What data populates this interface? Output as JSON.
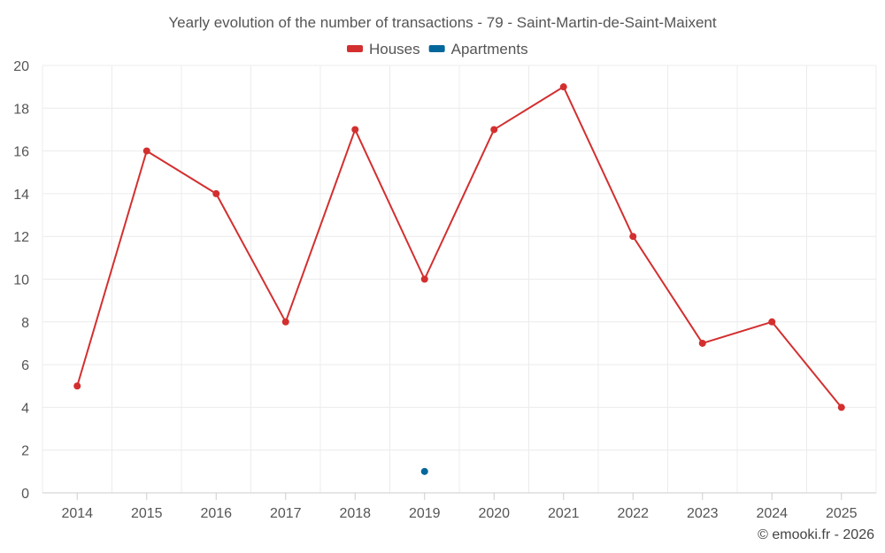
{
  "chart_data": {
    "type": "line",
    "title": "Yearly evolution of the number of transactions - 79 - Saint-Martin-de-Saint-Maixent",
    "categories": [
      "2014",
      "2015",
      "2016",
      "2017",
      "2018",
      "2019",
      "2020",
      "2021",
      "2022",
      "2023",
      "2024",
      "2025"
    ],
    "ylim": [
      0,
      20
    ],
    "yticks": [
      0,
      2,
      4,
      6,
      8,
      10,
      12,
      14,
      16,
      18,
      20
    ],
    "grid": true,
    "legend_position": "top-center",
    "series": [
      {
        "name": "Houses",
        "color": "#d32f2f",
        "values": [
          5,
          16,
          14,
          8,
          17,
          10,
          17,
          19,
          12,
          7,
          8,
          4
        ]
      },
      {
        "name": "Apartments",
        "color": "#04679b",
        "values": [
          null,
          null,
          null,
          null,
          null,
          1,
          null,
          null,
          null,
          null,
          null,
          null
        ]
      }
    ]
  },
  "credit": "© emooki.fr - 2026"
}
